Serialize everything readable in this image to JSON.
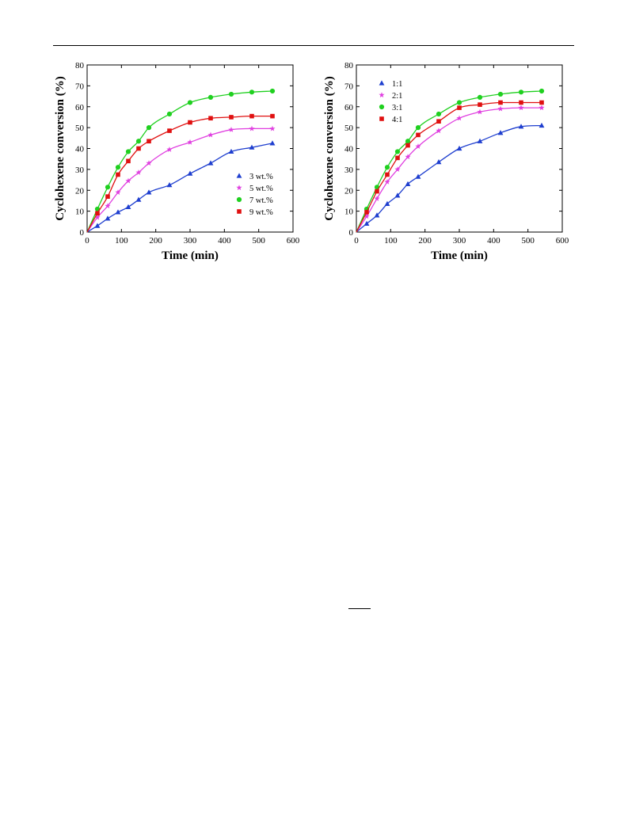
{
  "chart_data": [
    {
      "type": "scatter",
      "xlabel": "Time (min)",
      "ylabel": "Cyclohexene conversion (%)",
      "xlim": [
        0,
        600
      ],
      "ylim": [
        0,
        80
      ],
      "xticks": [
        0,
        100,
        200,
        300,
        400,
        500,
        600
      ],
      "yticks": [
        0,
        10,
        20,
        30,
        40,
        50,
        60,
        70,
        80
      ],
      "grid": false,
      "legend_position": "lower-right",
      "series": [
        {
          "name": "3 wt.%",
          "marker": "triangle",
          "color": "#1f3fcf",
          "x": [
            30,
            60,
            90,
            120,
            150,
            180,
            240,
            300,
            360,
            420,
            480,
            540
          ],
          "y": [
            3,
            6.5,
            9.5,
            12,
            15.5,
            19,
            22.5,
            28,
            33,
            38.5,
            40.5,
            42.5
          ]
        },
        {
          "name": "5 wt.%",
          "marker": "star",
          "color": "#e040e0",
          "x": [
            30,
            60,
            90,
            120,
            150,
            180,
            240,
            300,
            360,
            420,
            480,
            540
          ],
          "y": [
            7,
            12.5,
            19,
            24.5,
            28.5,
            33,
            39.5,
            43,
            46.5,
            49,
            49.5,
            49.5
          ]
        },
        {
          "name": "7 wt.%",
          "marker": "circle",
          "color": "#1fd01f",
          "x": [
            30,
            60,
            90,
            120,
            150,
            180,
            240,
            300,
            360,
            420,
            480,
            540
          ],
          "y": [
            11,
            21.5,
            31,
            38.5,
            43.5,
            50,
            56.5,
            62,
            64.5,
            66,
            67,
            67.5
          ]
        },
        {
          "name": "9 wt.%",
          "marker": "square",
          "color": "#e01010",
          "x": [
            30,
            60,
            90,
            120,
            150,
            180,
            240,
            300,
            360,
            420,
            480,
            540
          ],
          "y": [
            9,
            17,
            27.5,
            34,
            40,
            43.5,
            48.5,
            52.5,
            54.5,
            55,
            55.5,
            55.5
          ]
        }
      ]
    },
    {
      "type": "scatter",
      "xlabel": "Time (min)",
      "ylabel": "Cyclohexene conversion (%)",
      "xlim": [
        0,
        600
      ],
      "ylim": [
        0,
        80
      ],
      "xticks": [
        0,
        100,
        200,
        300,
        400,
        500,
        600
      ],
      "yticks": [
        0,
        10,
        20,
        30,
        40,
        50,
        60,
        70,
        80
      ],
      "grid": false,
      "legend_position": "upper-left",
      "series": [
        {
          "name": "1:1",
          "marker": "triangle",
          "color": "#1f3fcf",
          "x": [
            30,
            60,
            90,
            120,
            150,
            180,
            240,
            300,
            360,
            420,
            480,
            540
          ],
          "y": [
            4,
            8,
            13.5,
            17.5,
            23,
            26.5,
            33.5,
            40,
            43.5,
            47.5,
            50.5,
            51
          ]
        },
        {
          "name": "2:1",
          "marker": "star",
          "color": "#e040e0",
          "x": [
            30,
            60,
            90,
            120,
            150,
            180,
            240,
            300,
            360,
            420,
            480,
            540
          ],
          "y": [
            7.5,
            16,
            24,
            30,
            36,
            41,
            48.5,
            54.5,
            57.5,
            59,
            59.5,
            59.5
          ]
        },
        {
          "name": "3:1",
          "marker": "circle",
          "color": "#1fd01f",
          "x": [
            30,
            60,
            90,
            120,
            150,
            180,
            240,
            300,
            360,
            420,
            480,
            540
          ],
          "y": [
            11,
            21.5,
            31,
            38.5,
            43.5,
            50,
            56.5,
            62,
            64.5,
            66,
            67,
            67.5
          ]
        },
        {
          "name": "4:1",
          "marker": "square",
          "color": "#e01010",
          "x": [
            30,
            60,
            90,
            120,
            150,
            180,
            240,
            300,
            360,
            420,
            480,
            540
          ],
          "y": [
            9.5,
            19.5,
            27.5,
            35.5,
            41.5,
            46.5,
            53,
            59.5,
            61,
            62,
            62,
            62
          ]
        }
      ]
    }
  ]
}
